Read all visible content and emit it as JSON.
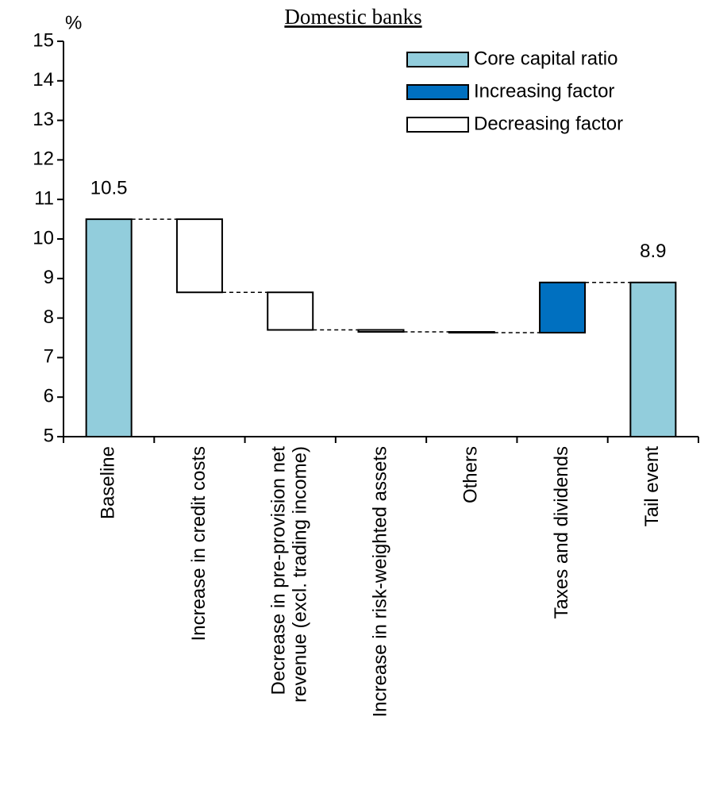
{
  "chart_data": {
    "type": "waterfall",
    "title": "Domestic banks",
    "y_label": "%",
    "categories": [
      "Baseline",
      "Increase in credit costs",
      [
        "Decrease in pre-provision net",
        "revenue (excl. trading income)"
      ],
      "Increase in risk-weighted assets",
      "Others",
      "Taxes and dividends",
      "Tail event"
    ],
    "series": [
      {
        "name": "Core capital ratio",
        "color": "#92cddc",
        "absolute": true,
        "values": [
          10.5,
          null,
          null,
          null,
          null,
          null,
          8.9
        ]
      },
      {
        "name": "Increasing factor",
        "color": "#0070c0",
        "values": [
          null,
          null,
          null,
          null,
          null,
          1.27,
          null
        ]
      },
      {
        "name": "Decreasing factor",
        "color": "#ffffff",
        "values": [
          null,
          -1.85,
          -0.95,
          -0.05,
          -0.02,
          null,
          null
        ]
      }
    ],
    "ylim": [
      5,
      15
    ],
    "yticks": [
      5,
      6,
      7,
      8,
      9,
      10,
      11,
      12,
      13,
      14,
      15
    ],
    "legend": "upper right"
  }
}
